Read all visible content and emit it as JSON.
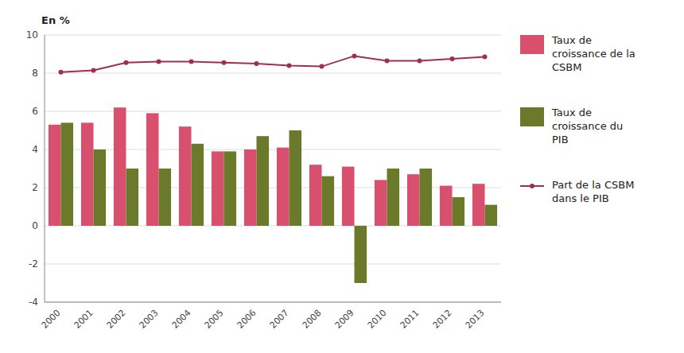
{
  "chart_data": {
    "type": "bar",
    "y_label": "En %",
    "categories": [
      "2000",
      "2001",
      "2002",
      "2003",
      "2004",
      "2005",
      "2006",
      "2007",
      "2008",
      "2009",
      "2010",
      "2011",
      "2012",
      "2013"
    ],
    "series": [
      {
        "name": "Taux de\ncroissance de la\nCSBM",
        "type": "bar",
        "color": "#d94f6e",
        "values": [
          5.3,
          5.4,
          6.2,
          5.9,
          5.2,
          3.9,
          4.0,
          4.1,
          3.2,
          3.1,
          2.4,
          2.7,
          2.1,
          2.2
        ]
      },
      {
        "name": "Taux de\ncroissance du\nPIB",
        "type": "bar",
        "color": "#6b7a2a",
        "values": [
          5.4,
          4.0,
          3.0,
          3.0,
          4.3,
          3.9,
          4.7,
          5.0,
          2.6,
          -3.0,
          3.0,
          3.0,
          1.5,
          1.1
        ]
      },
      {
        "name": "Part de la CSBM\ndans le PIB",
        "type": "line",
        "color": "#a0304a",
        "marker": "circle",
        "line_style": "solid",
        "values": [
          8.05,
          8.15,
          8.55,
          8.6,
          8.6,
          8.55,
          8.5,
          8.4,
          8.35,
          8.9,
          8.65,
          8.65,
          8.75,
          8.85
        ]
      }
    ],
    "ylim": [
      -4,
      10
    ],
    "yticks": [
      -4,
      -2,
      0,
      2,
      4,
      6,
      8,
      10
    ],
    "grid": true,
    "legend": "right"
  }
}
